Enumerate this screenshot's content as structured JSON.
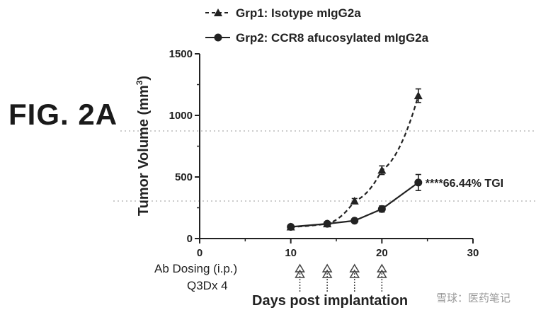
{
  "figure_label": "FIG. 2A",
  "chart_data": {
    "type": "line",
    "xlabel": "Days post implantation",
    "ylabel": "Tumor Volume (mm",
    "ylabel_sup": "3",
    "ylabel_close": ")",
    "xlim": [
      0,
      30
    ],
    "ylim": [
      0,
      1500
    ],
    "x_ticks": [
      "0",
      "10",
      "20",
      "30"
    ],
    "y_ticks": [
      "0",
      "500",
      "1000",
      "1500"
    ],
    "legend_position": "top",
    "grid": false,
    "series": [
      {
        "name": "Grp1: Isotype mIgG2a",
        "style": "dashed",
        "marker": "triangle",
        "x": [
          10,
          14,
          17,
          20,
          24
        ],
        "y": [
          95,
          120,
          305,
          555,
          1160
        ],
        "err": [
          8,
          10,
          20,
          35,
          55
        ]
      },
      {
        "name": "Grp2: CCR8 afucosylated mIgG2a",
        "style": "solid",
        "marker": "circle",
        "x": [
          10,
          14,
          17,
          20,
          24
        ],
        "y": [
          95,
          120,
          145,
          240,
          455
        ],
        "err": [
          8,
          10,
          15,
          25,
          65
        ]
      }
    ],
    "annotation": "****66.44% TGI",
    "dosing_label_line1": "Ab Dosing (i.p.)",
    "dosing_label_line2": "Q3Dx 4",
    "dosing_days": [
      11,
      14,
      17,
      20
    ]
  },
  "watermark": "雪球：医药笔记"
}
